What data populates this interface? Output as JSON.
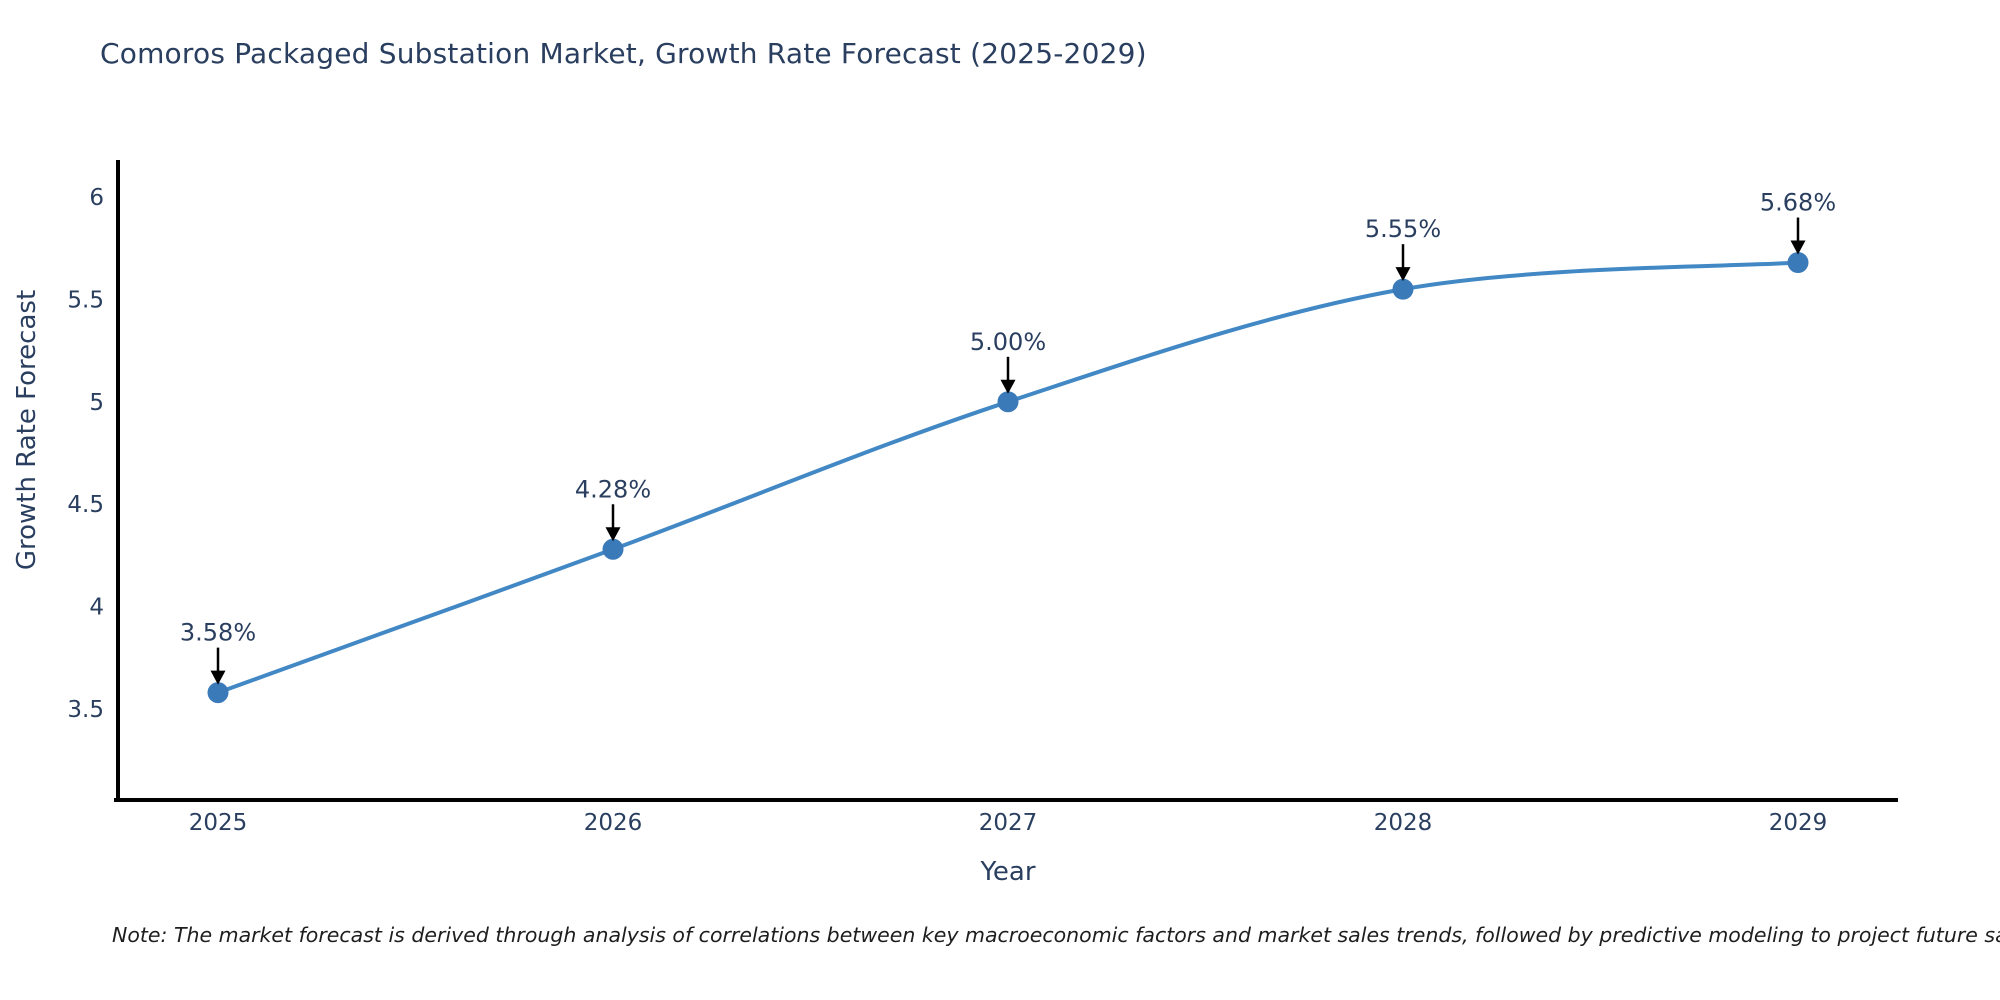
{
  "note": "Note: The market forecast is derived through analysis of correlations between key macroeconomic factors and market sales trends, followed by predictive modeling to project future sales",
  "chart_data": {
    "type": "line",
    "title": "Comoros Packaged Substation Market, Growth Rate Forecast (2025-2029)",
    "xlabel": "Year",
    "ylabel": "Growth Rate Forecast",
    "x": [
      2025,
      2026,
      2027,
      2028,
      2029
    ],
    "x_tick_labels": [
      "2025",
      "2026",
      "2027",
      "2028",
      "2029"
    ],
    "series": [
      {
        "name": "Growth Rate Forecast",
        "values": [
          3.58,
          4.28,
          5.0,
          5.55,
          5.68
        ],
        "point_labels": [
          "3.58%",
          "4.28%",
          "5.00%",
          "5.55%",
          "5.68%"
        ]
      }
    ],
    "y_ticks": [
      {
        "value": 3.5,
        "label": "3.5"
      },
      {
        "value": 4.0,
        "label": "4"
      },
      {
        "value": 4.5,
        "label": "4.5"
      },
      {
        "value": 5.0,
        "label": "5"
      },
      {
        "value": 5.5,
        "label": "5.5"
      },
      {
        "value": 6.0,
        "label": "6"
      }
    ],
    "ylim": [
      3.06,
      6.18
    ],
    "line_shape": "spline",
    "grid": false,
    "legend_position": "none",
    "annotations_have_arrows": true,
    "colors": {
      "line": "#4288c5",
      "marker": "#3a7ab8",
      "axis_spine": "#000000",
      "tick_text": "#2a3f5f",
      "annotation_text": "#2a3f5f",
      "annotation_arrow": "#000000",
      "title_text": "#2a3f5f",
      "note_text": "#1e1e1e",
      "background": "#ffffff"
    }
  }
}
